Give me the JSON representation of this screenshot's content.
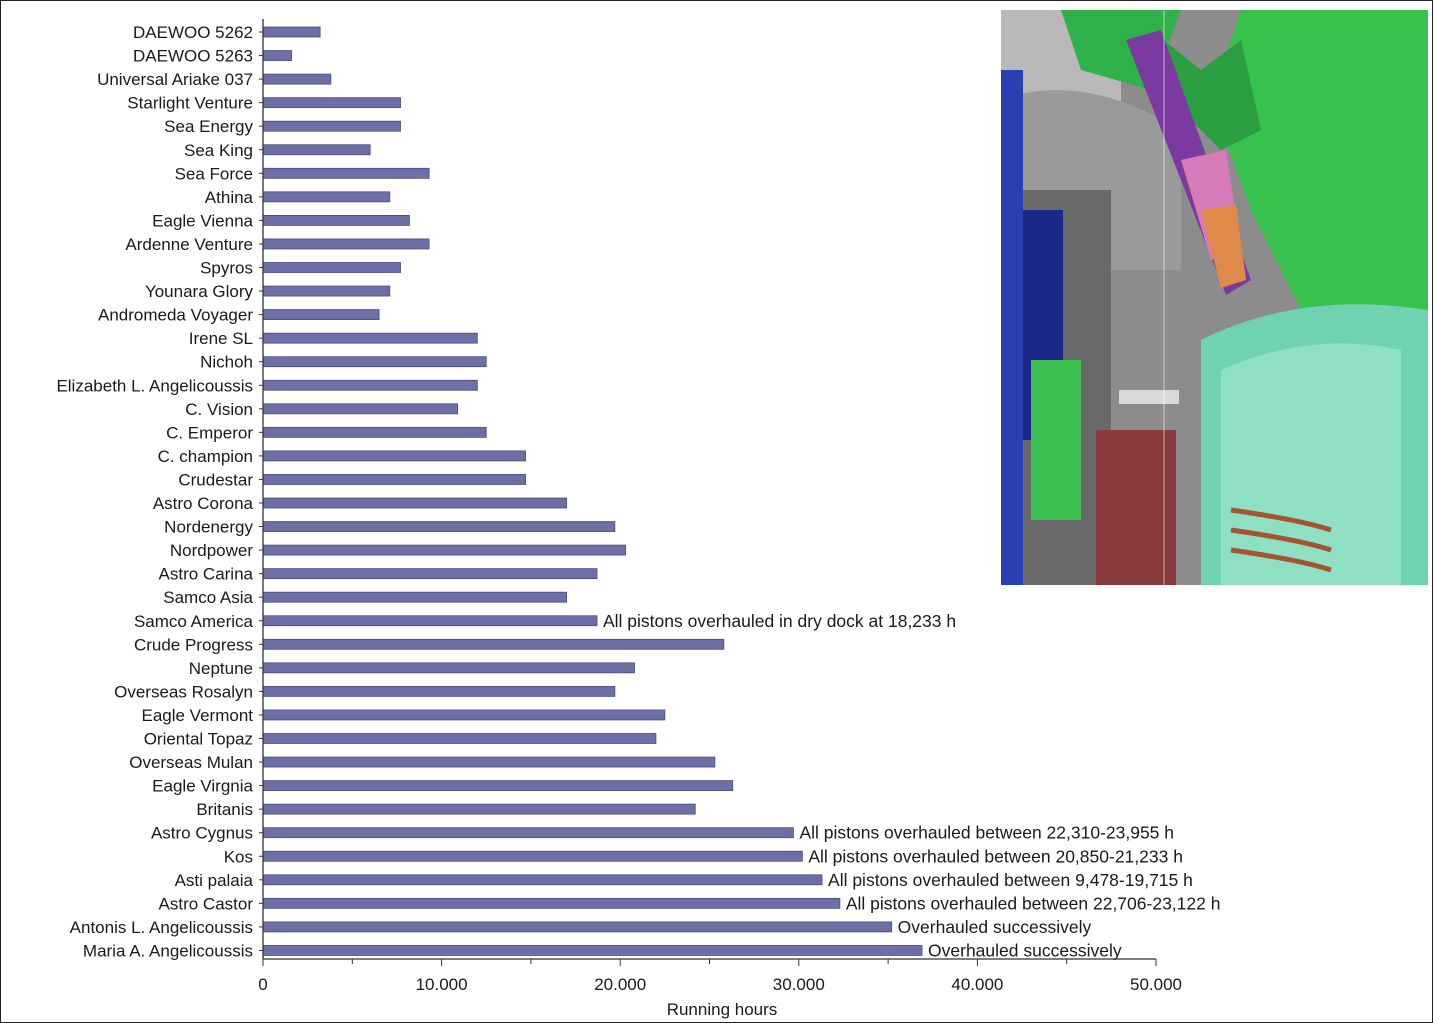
{
  "chart_data": {
    "type": "bar",
    "orientation": "horizontal",
    "categories": [
      "DAEWOO 5262",
      "DAEWOO 5263",
      "Universal Ariake  037",
      "Starlight Venture",
      "Sea Energy",
      "Sea King",
      "Sea Force",
      "Athina",
      "Eagle Vienna",
      "Ardenne Venture",
      "Spyros",
      "Younara Glory",
      "Andromeda Voyager",
      "Irene SL",
      "Nichoh",
      "Elizabeth L. Angelicoussis",
      "C. Vision",
      "C. Emperor",
      "C. champion",
      "Crudestar",
      "Astro Corona",
      "Nordenergy",
      "Nordpower",
      "Astro Carina",
      "Samco Asia",
      "Samco America",
      "Crude Progress",
      "Neptune",
      "Overseas Rosalyn",
      "Eagle Vermont",
      "Oriental Topaz",
      "Overseas Mulan",
      "Eagle Virgnia",
      "Britanis",
      "Astro Cygnus",
      "Kos",
      "Asti palaia",
      "Astro Castor",
      "Antonis L. Angelicoussis",
      "Maria A. Angelicoussis"
    ],
    "values": [
      3200,
      1600,
      3800,
      7700,
      7700,
      6000,
      9300,
      7100,
      8200,
      9300,
      7700,
      7100,
      6500,
      12000,
      12500,
      12000,
      10900,
      12500,
      14700,
      14700,
      17000,
      19700,
      20300,
      18700,
      17000,
      18700,
      25800,
      20800,
      19700,
      22500,
      22000,
      25300,
      26300,
      24200,
      29700,
      30200,
      31300,
      32300,
      35200,
      36900
    ],
    "annotations": [
      {
        "category": "Samco America",
        "text": "All pistons overhauled in dry dock at 18,233 h"
      },
      {
        "category": "Astro Cygnus",
        "text": "All pistons overhauled between 22,310-23,955 h"
      },
      {
        "category": "Kos",
        "text": "All pistons overhauled between 20,850-21,233 h"
      },
      {
        "category": "Asti palaia",
        "text": "All pistons overhauled between 9,478-19,715 h"
      },
      {
        "category": "Astro Castor",
        "text": "All pistons overhauled between 22,706-23,122 h"
      },
      {
        "category": "Antonis L. Angelicoussis",
        "text": "Overhauled successively"
      },
      {
        "category": "Maria A. Angelicoussis",
        "text": "Overhauled successively"
      }
    ],
    "xlabel": "Running hours",
    "xlim": [
      0,
      50000
    ],
    "xticks": [
      0,
      10000,
      20000,
      30000,
      40000,
      50000
    ],
    "xtick_labels": [
      "0",
      "10.000",
      "20.000",
      "30.000",
      "40.000",
      "50.000"
    ],
    "minor_tick_step": 5000,
    "grid": false,
    "colors": {
      "bar": "#6f6fa8",
      "bar_edge": "#4a4a80",
      "axis": "#333333"
    }
  },
  "inset_image": {
    "icon": "engine-cutaway-illustration"
  }
}
